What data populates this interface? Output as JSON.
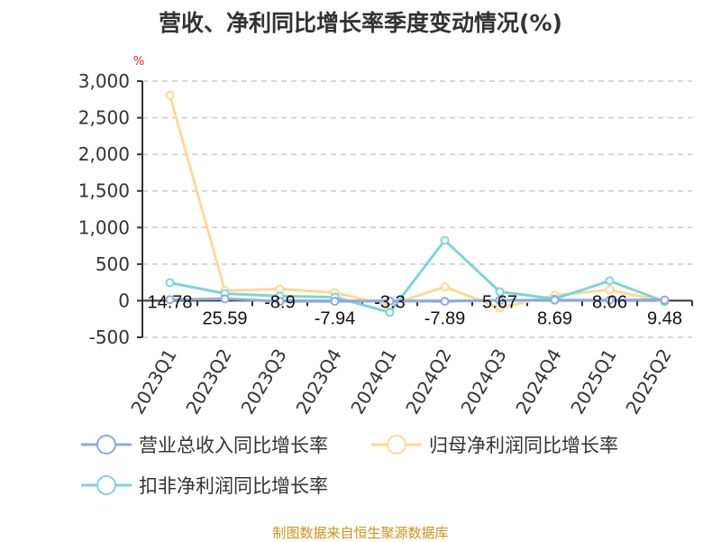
{
  "title": "营收、净利同比增长率季度变动情况(%)",
  "source": "制图数据来自恒生聚源数据库",
  "chart_data": {
    "type": "line",
    "title": "营收、净利同比增长率季度变动情况(%)",
    "ylabel": "%",
    "ylim": [
      -500,
      3000
    ],
    "yticks": [
      3000,
      2500,
      2000,
      1500,
      1000,
      500,
      0,
      -500
    ],
    "ytick_labels": [
      "3,000",
      "2,500",
      "2,000",
      "1,500",
      "1,000",
      "500",
      "0",
      "-500"
    ],
    "grid": true,
    "legend_position": "bottom",
    "categories": [
      "2023Q1",
      "2023Q2",
      "2023Q3",
      "2023Q4",
      "2024Q1",
      "2024Q2",
      "2024Q3",
      "2024Q4",
      "2025Q1",
      "2025Q2"
    ],
    "series": [
      {
        "name": "营业总收入同比增长率",
        "color": "#8eaadb",
        "values": [
          14.78,
          25.59,
          -8.9,
          -7.94,
          -3.3,
          -7.89,
          5.67,
          8.69,
          8.06,
          9.48
        ],
        "data_labels": [
          "14.78",
          "25.59",
          "-8.9",
          "-7.94",
          "-3.3",
          "-7.89",
          "5.67",
          "8.69",
          "8.06",
          "9.48"
        ]
      },
      {
        "name": "归母净利润同比增长率",
        "color": "#ffd999",
        "values": [
          2808,
          139,
          160,
          110,
          -62,
          190,
          -99,
          74,
          148,
          -12
        ]
      },
      {
        "name": "扣非净利润同比增长率",
        "color": "#7fd3d8",
        "values": [
          246,
          98,
          62,
          49,
          -160,
          825,
          123,
          25,
          271,
          -12
        ]
      }
    ]
  }
}
